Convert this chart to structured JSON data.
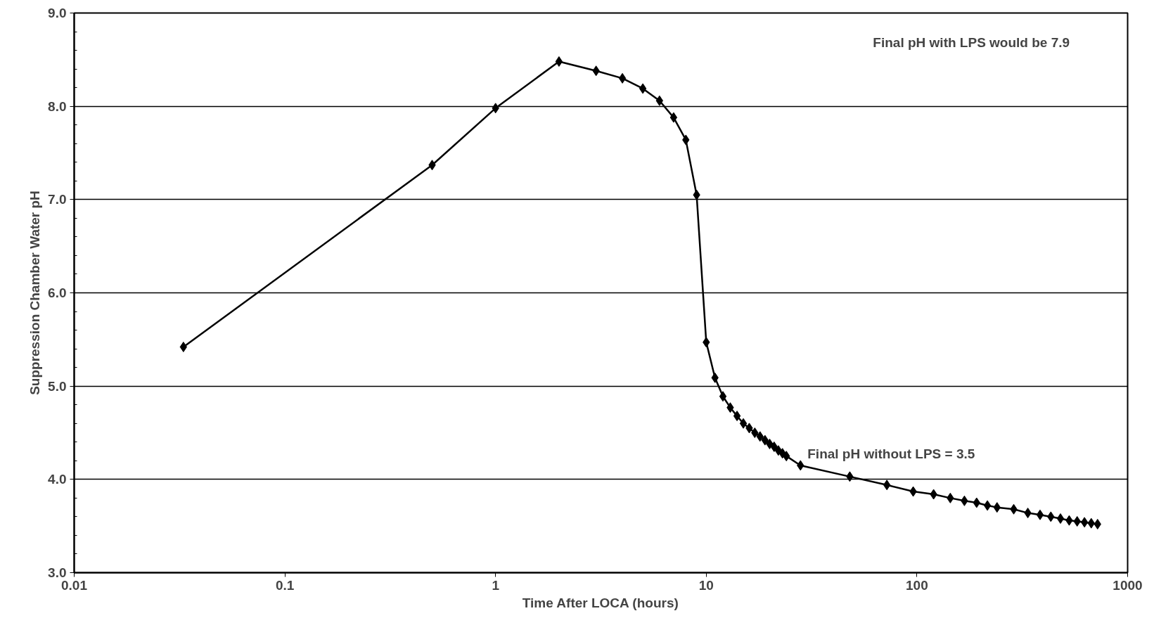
{
  "chart_data": {
    "type": "line",
    "xlabel": "Time After LOCA (hours)",
    "ylabel": "Suppression Chamber Water pH",
    "log": "x",
    "grid": "y",
    "marker": "diamond",
    "line_style": "solid",
    "xlim": [
      0.01,
      1000
    ],
    "xticks": [
      0.01,
      0.1,
      1,
      10,
      100,
      1000
    ],
    "ylim": [
      3,
      9
    ],
    "yticks": [
      {
        "value": 3,
        "label": "3.0"
      },
      {
        "value": 4,
        "label": "4.0"
      },
      {
        "value": 5,
        "label": "5.0"
      },
      {
        "value": 6,
        "label": "6.0"
      },
      {
        "value": 7,
        "label": "7.0"
      },
      {
        "value": 8,
        "label": "8.0"
      },
      {
        "value": 9,
        "label": "9.0"
      }
    ],
    "annotations": [
      "Final pH with LPS would be 7.9",
      "Final pH without LPS = 3.5"
    ],
    "series": [
      {
        "color": "#000000",
        "x": [
          0.033,
          0.5,
          1,
          2,
          3,
          4,
          5,
          6,
          7,
          8,
          9,
          10,
          11,
          12,
          13,
          14,
          15,
          16,
          17,
          18,
          19,
          20,
          21,
          22,
          23,
          24,
          28,
          48,
          72,
          96,
          120,
          144,
          168,
          192,
          216,
          240,
          288,
          336,
          384,
          432,
          480,
          528,
          576,
          624,
          672,
          720
        ],
        "values": [
          5.42,
          7.37,
          7.98,
          8.48,
          8.38,
          8.3,
          8.19,
          8.06,
          7.88,
          7.64,
          7.05,
          5.47,
          5.09,
          4.89,
          4.77,
          4.68,
          4.6,
          4.55,
          4.5,
          4.46,
          4.42,
          4.38,
          4.35,
          4.31,
          4.28,
          4.25,
          4.15,
          4.03,
          3.94,
          3.87,
          3.84,
          3.8,
          3.77,
          3.75,
          3.72,
          3.7,
          3.68,
          3.64,
          3.62,
          3.6,
          3.58,
          3.56,
          3.55,
          3.54,
          3.53,
          3.52
        ]
      }
    ]
  }
}
